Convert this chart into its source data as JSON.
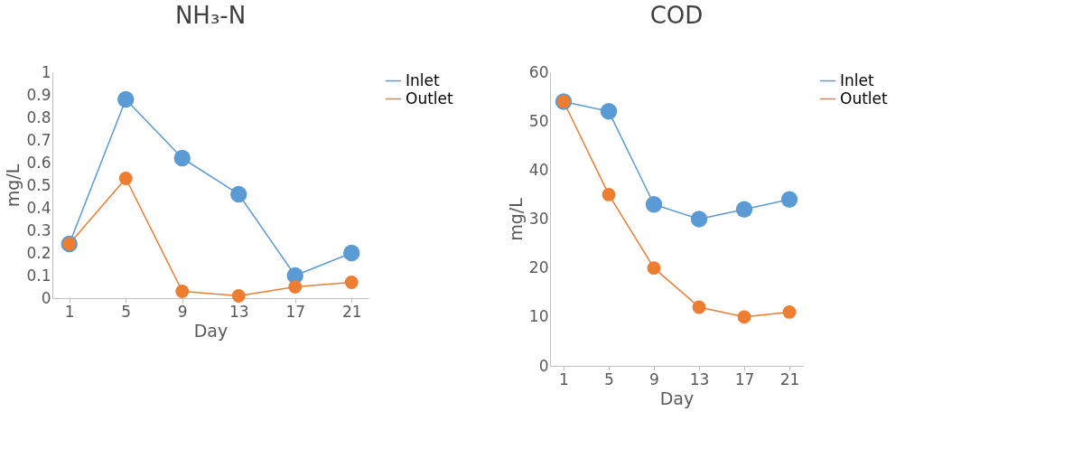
{
  "chart_data": [
    {
      "type": "line",
      "title": "NH₃-N",
      "xlabel": "Day",
      "ylabel": "mg/L",
      "categories": [
        "1",
        "5",
        "9",
        "13",
        "17",
        "21"
      ],
      "ylim": [
        0,
        1
      ],
      "yticks": [
        0,
        0.1,
        0.2,
        0.3,
        0.4,
        0.5,
        0.6,
        0.7,
        0.8,
        0.9,
        1
      ],
      "grid": false,
      "legend": "right",
      "marker": "circle",
      "line_style": "solid",
      "series": [
        {
          "name": "Inlet",
          "color": "#5b9bd5",
          "values": [
            0.24,
            0.88,
            0.62,
            0.46,
            0.1,
            0.2
          ]
        },
        {
          "name": "Outlet",
          "color": "#ed7d31",
          "values": [
            0.24,
            0.53,
            0.03,
            0.01,
            0.05,
            0.07
          ]
        }
      ]
    },
    {
      "type": "line",
      "title": "COD",
      "xlabel": "Day",
      "ylabel": "mg/L",
      "categories": [
        "1",
        "5",
        "9",
        "13",
        "17",
        "21"
      ],
      "ylim": [
        0,
        60
      ],
      "yticks": [
        0,
        10,
        20,
        30,
        40,
        50,
        60
      ],
      "grid": false,
      "legend": "right",
      "marker": "circle",
      "line_style": "solid",
      "series": [
        {
          "name": "Inlet",
          "color": "#5b9bd5",
          "values": [
            54,
            52,
            33,
            30,
            32,
            34
          ]
        },
        {
          "name": "Outlet",
          "color": "#ed7d31",
          "values": [
            54,
            35,
            20,
            12,
            10,
            11
          ]
        }
      ]
    }
  ]
}
